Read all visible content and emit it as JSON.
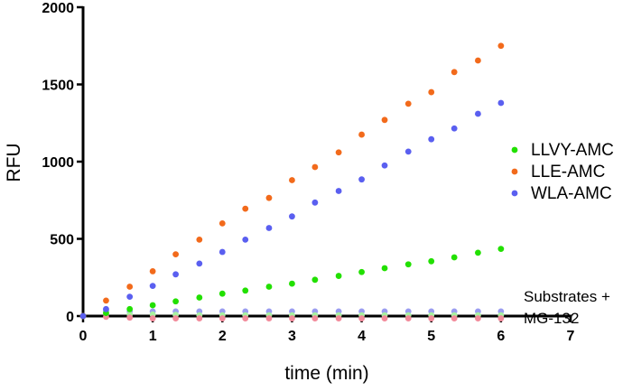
{
  "chart_data": {
    "type": "scatter",
    "xlabel": "time (min)",
    "ylabel": "RFU",
    "xlim": [
      0,
      7
    ],
    "ylim": [
      0,
      2000
    ],
    "xticks": [
      "0",
      "1",
      "2",
      "3",
      "4",
      "5",
      "6",
      "7"
    ],
    "yticks": [
      "0",
      "500",
      "1000",
      "1500",
      "2000"
    ],
    "grid": false,
    "legend_position": "right",
    "series": [
      {
        "name": "LLVY-AMC",
        "color": "#22e000",
        "x": [
          0,
          0.33,
          0.67,
          1,
          1.33,
          1.67,
          2,
          2.33,
          2.67,
          3,
          3.33,
          3.67,
          4,
          4.33,
          4.67,
          5,
          5.33,
          5.67,
          6
        ],
        "y": [
          0,
          20,
          45,
          70,
          95,
          120,
          145,
          165,
          190,
          210,
          235,
          260,
          285,
          310,
          335,
          355,
          380,
          410,
          435
        ]
      },
      {
        "name": "LLE-AMC",
        "color": "#f26a1b",
        "x": [
          0,
          0.33,
          0.67,
          1,
          1.33,
          1.67,
          2,
          2.33,
          2.67,
          3,
          3.33,
          3.67,
          4,
          4.33,
          4.67,
          5,
          5.33,
          5.67,
          6
        ],
        "y": [
          0,
          100,
          190,
          290,
          400,
          495,
          600,
          695,
          765,
          880,
          965,
          1060,
          1175,
          1270,
          1375,
          1450,
          1580,
          1655,
          1750
        ]
      },
      {
        "name": "WLA-AMC",
        "color": "#5a5ff0",
        "x": [
          0,
          0.33,
          0.67,
          1,
          1.33,
          1.67,
          2,
          2.33,
          2.67,
          3,
          3.33,
          3.67,
          4,
          4.33,
          4.67,
          5,
          5.33,
          5.67,
          6
        ],
        "y": [
          0,
          45,
          125,
          195,
          270,
          340,
          415,
          495,
          570,
          645,
          735,
          810,
          885,
          975,
          1065,
          1145,
          1215,
          1310,
          1380
        ]
      },
      {
        "name": "",
        "color": "#9a9cf0",
        "x": [
          0.33,
          0.67,
          1,
          1.33,
          1.67,
          2,
          2.33,
          2.67,
          3,
          3.33,
          3.67,
          4,
          4.33,
          4.67,
          5,
          5.33,
          5.67,
          6
        ],
        "y": [
          35,
          30,
          30,
          30,
          30,
          30,
          30,
          30,
          30,
          30,
          30,
          30,
          30,
          30,
          30,
          30,
          30,
          30
        ]
      },
      {
        "name": "",
        "color": "#a8f0a0",
        "x": [
          0.33,
          0.67,
          1,
          1.33,
          1.67,
          2,
          2.33,
          2.67,
          3,
          3.33,
          3.67,
          4,
          4.33,
          4.67,
          5,
          5.33,
          5.67,
          6
        ],
        "y": [
          15,
          10,
          10,
          8,
          5,
          5,
          5,
          5,
          5,
          5,
          5,
          5,
          5,
          5,
          5,
          5,
          5,
          5
        ]
      },
      {
        "name": "",
        "color": "#f28a9a",
        "x": [
          0,
          0.33,
          0.67,
          1,
          1.33,
          1.67,
          2,
          2.33,
          2.67,
          3,
          3.33,
          3.67,
          4,
          4.33,
          4.67,
          5,
          5.33,
          5.67,
          6
        ],
        "y": [
          0,
          -5,
          -10,
          -15,
          -15,
          -15,
          -15,
          -15,
          -15,
          -15,
          -15,
          -15,
          -15,
          -15,
          -15,
          -15,
          -15,
          -15,
          -15
        ]
      }
    ],
    "annotation": [
      "Substrates +",
      "MG-132"
    ]
  }
}
